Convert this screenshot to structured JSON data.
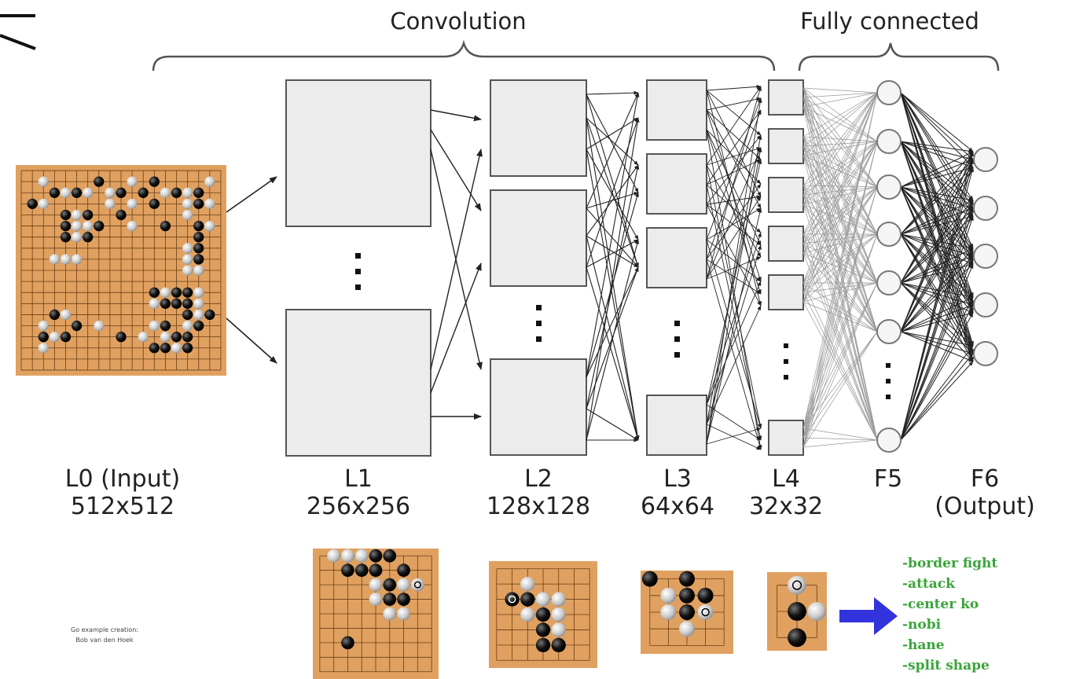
{
  "sections": {
    "convolution": "Convolution",
    "fully_connected": "Fully connected"
  },
  "layers": [
    {
      "name": "L0 (Input)",
      "size": "512x512"
    },
    {
      "name": "L1",
      "size": "256x256"
    },
    {
      "name": "L2",
      "size": "128x128"
    },
    {
      "name": "L3",
      "size": "64x64"
    },
    {
      "name": "L4",
      "size": "32x32"
    },
    {
      "name": "F5",
      "size": ""
    },
    {
      "name": "F6",
      "size": "(Output)"
    }
  ],
  "credit": {
    "line1": "Go example creation:",
    "line2": "Bob van den Hoek"
  },
  "outputs": [
    "-border fight",
    "-attack",
    "-center ko",
    "-nobi",
    "-hane",
    "-split shape"
  ],
  "colors": {
    "board": "#e0a060",
    "box_fill": "#ececec",
    "box_stroke": "#555555",
    "output_text": "#3aa53a",
    "arrow": "#3333dd"
  }
}
